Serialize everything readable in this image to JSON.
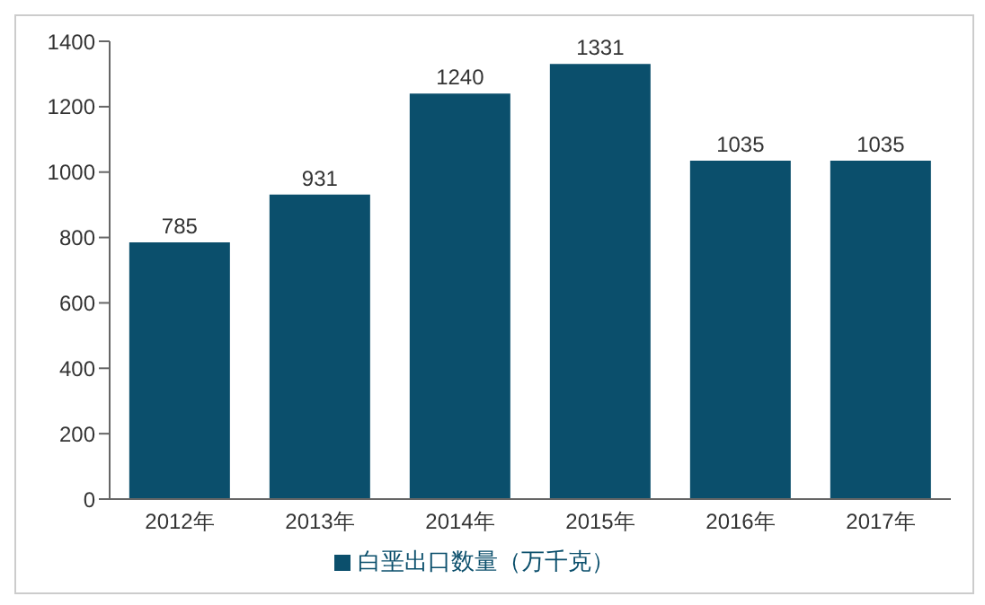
{
  "chart_data": {
    "type": "bar",
    "categories": [
      "2012年",
      "2013年",
      "2014年",
      "2015年",
      "2016年",
      "2017年"
    ],
    "series": [
      {
        "name": "白垩出口数量（万千克）",
        "color": "#0b4f6c",
        "values": [
          785,
          931,
          1240,
          1331,
          1035,
          1035
        ]
      }
    ],
    "ylim": [
      0,
      1400
    ],
    "yticks": [
      0,
      200,
      400,
      600,
      800,
      1000,
      1200,
      1400
    ],
    "data_labels": true,
    "legend": "bottom",
    "grid": false
  }
}
